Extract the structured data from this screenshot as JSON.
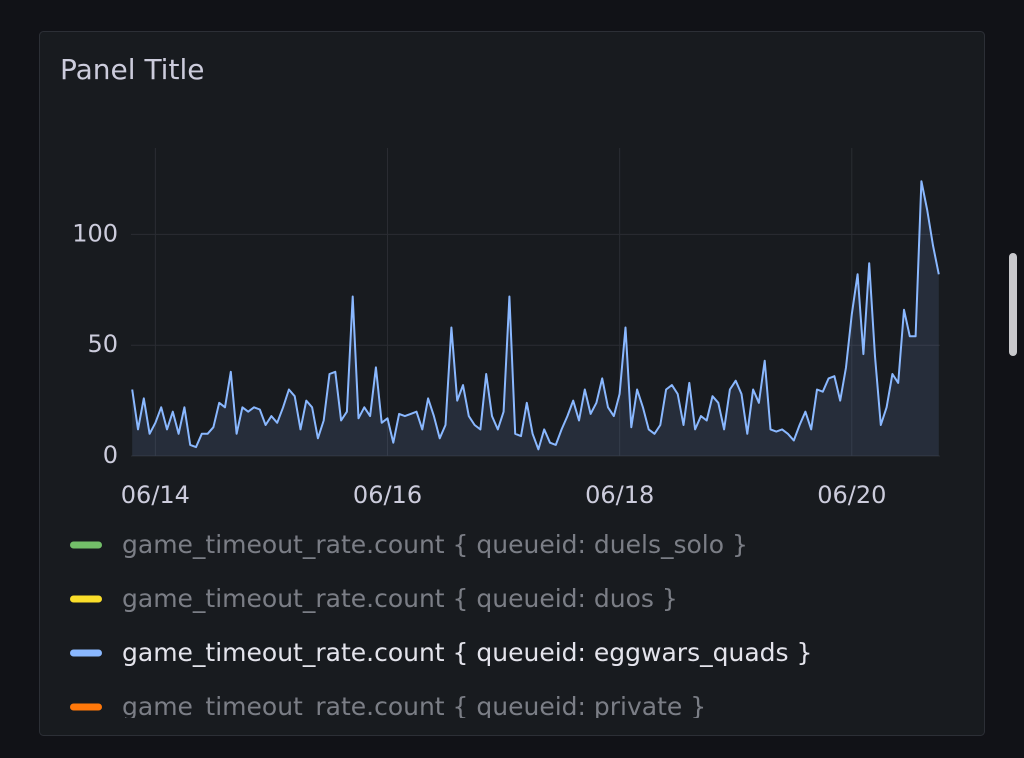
{
  "chart_data": {
    "type": "line",
    "title": "Panel Title",
    "x": [
      13.8,
      13.85,
      13.9,
      13.95,
      14.0,
      14.05,
      14.1,
      14.15,
      14.2,
      14.25,
      14.3,
      14.35,
      14.4,
      14.45,
      14.5,
      14.55,
      14.6,
      14.65,
      14.7,
      14.75,
      14.8,
      14.85,
      14.9,
      14.95,
      15.0,
      15.05,
      15.1,
      15.15,
      15.2,
      15.25,
      15.3,
      15.35,
      15.4,
      15.45,
      15.5,
      15.55,
      15.6,
      15.65,
      15.7,
      15.75,
      15.8,
      15.85,
      15.9,
      15.95,
      16.0,
      16.05,
      16.1,
      16.15,
      16.2,
      16.25,
      16.3,
      16.35,
      16.4,
      16.45,
      16.5,
      16.55,
      16.6,
      16.65,
      16.7,
      16.75,
      16.8,
      16.85,
      16.9,
      16.95,
      17.0,
      17.05,
      17.1,
      17.15,
      17.2,
      17.25,
      17.3,
      17.35,
      17.4,
      17.45,
      17.5,
      17.55,
      17.6,
      17.65,
      17.7,
      17.75,
      17.8,
      17.85,
      17.9,
      17.95,
      18.0,
      18.05,
      18.1,
      18.15,
      18.2,
      18.25,
      18.3,
      18.35,
      18.4,
      18.45,
      18.5,
      18.55,
      18.6,
      18.65,
      18.7,
      18.75,
      18.8,
      18.85,
      18.9,
      18.95,
      19.0,
      19.05,
      19.1,
      19.15,
      19.2,
      19.25,
      19.3,
      19.35,
      19.4,
      19.45,
      19.5,
      19.55,
      19.6,
      19.65,
      19.7,
      19.75,
      19.8,
      19.85,
      19.9,
      19.95,
      20.0,
      20.05,
      20.1,
      20.15,
      20.2,
      20.25,
      20.3,
      20.35,
      20.4,
      20.45,
      20.5,
      20.55,
      20.6,
      20.65,
      20.7,
      20.75
    ],
    "xlim": [
      13.79,
      20.76
    ],
    "xticks": [
      {
        "value": 14,
        "label": "06/14"
      },
      {
        "value": 16,
        "label": "06/16"
      },
      {
        "value": 18,
        "label": "06/18"
      },
      {
        "value": 20,
        "label": "06/20"
      }
    ],
    "ylim": [
      0,
      139
    ],
    "yticks": [
      0,
      50,
      100
    ],
    "grid": true,
    "series": [
      {
        "name": "game_timeout_rate.count { queueid: duels_solo }",
        "color": "#73bf69",
        "hidden": true
      },
      {
        "name": "game_timeout_rate.count { queueid: duos }",
        "color": "#fade2a",
        "hidden": true
      },
      {
        "name": "game_timeout_rate.count { queueid: eggwars_quads }",
        "color": "#8ab8ff",
        "hidden": false,
        "values": [
          30,
          12,
          26,
          10,
          15,
          22,
          12,
          20,
          10,
          22,
          5,
          4,
          10,
          10,
          13,
          24,
          22,
          38,
          10,
          22,
          20,
          22,
          21,
          14,
          18,
          15,
          22,
          30,
          27,
          12,
          25,
          22,
          8,
          16,
          37,
          38,
          16,
          20,
          72,
          17,
          22,
          18,
          40,
          15,
          17,
          6,
          19,
          18,
          19,
          20,
          12,
          26,
          18,
          8,
          14,
          58,
          25,
          32,
          18,
          14,
          12,
          37,
          18,
          12,
          20,
          72,
          10,
          9,
          24,
          10,
          3,
          12,
          6,
          5,
          12,
          18,
          25,
          16,
          30,
          19,
          24,
          35,
          22,
          18,
          28,
          58,
          13,
          30,
          22,
          12,
          10,
          14,
          30,
          32,
          28,
          14,
          33,
          12,
          18,
          16,
          27,
          24,
          12,
          30,
          34,
          28,
          10,
          30,
          24,
          43,
          12,
          11,
          12,
          10,
          7,
          14,
          20,
          12,
          30,
          29,
          35,
          36,
          25,
          40,
          64,
          82,
          46,
          87,
          45,
          14,
          22,
          37,
          33,
          66,
          54,
          54,
          124,
          111,
          95,
          82
        ]
      },
      {
        "name": "game_timeout_rate.count { queueid: private }",
        "color": "#ff780a",
        "hidden": true
      }
    ]
  }
}
